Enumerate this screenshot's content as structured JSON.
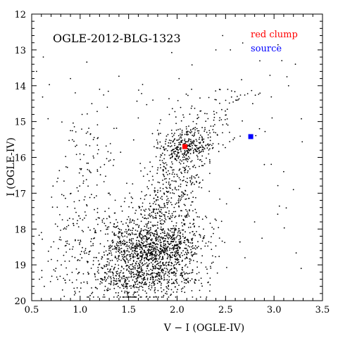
{
  "chart_data": {
    "type": "scatter",
    "title": "OGLE-2012-BLG-1323",
    "xlabel": "V − I (OGLE-IV)",
    "ylabel": "I (OGLE-IV)",
    "xlim": [
      0.5,
      3.5
    ],
    "ylim": [
      20,
      12
    ],
    "y_inverted": true,
    "x_ticks": [
      "0.5",
      "1.0",
      "1.5",
      "2.0",
      "2.5",
      "3.0",
      "3.5"
    ],
    "y_ticks": [
      "12",
      "13",
      "14",
      "15",
      "16",
      "17",
      "18",
      "19",
      "20"
    ],
    "series": [
      {
        "name": "",
        "color": "#000000",
        "marker": "dot",
        "description_of_distribution": "field stars: main-sequence/turnoff cloud near V-I≈1.7, I≈18.7; red giant branch rising to red clump near V-I≈2.1, I≈15.7",
        "points": [
          [
            0.55,
            13.6
          ],
          [
            0.62,
            13.2
          ],
          [
            0.72,
            16.8
          ],
          [
            0.58,
            19.4
          ],
          [
            0.63,
            19.6
          ],
          [
            0.67,
            18.9
          ],
          [
            0.75,
            19.1
          ],
          [
            0.79,
            17.6
          ],
          [
            0.83,
            18.0
          ],
          [
            0.85,
            19.5
          ],
          [
            0.9,
            13.8
          ],
          [
            0.95,
            14.2
          ],
          [
            1.02,
            14.8
          ],
          [
            1.12,
            14.5
          ],
          [
            1.2,
            14.1
          ],
          [
            1.28,
            14.6
          ],
          [
            1.6,
            14.9
          ],
          [
            1.75,
            14.4
          ],
          [
            1.92,
            14.8
          ],
          [
            2.02,
            13.8
          ],
          [
            2.15,
            14.1
          ],
          [
            2.4,
            13.0
          ],
          [
            2.47,
            12.6
          ],
          [
            2.55,
            13.0
          ],
          [
            2.62,
            14.3
          ],
          [
            2.78,
            14.5
          ],
          [
            2.98,
            14.9
          ],
          [
            3.08,
            13.3
          ],
          [
            3.15,
            14.0
          ],
          [
            3.22,
            13.4
          ],
          [
            2.85,
            15.2
          ],
          [
            2.9,
            16.2
          ],
          [
            2.8,
            17.8
          ],
          [
            3.1,
            16.4
          ],
          [
            3.2,
            16.9
          ],
          [
            2.7,
            18.8
          ],
          [
            3.28,
            19.1
          ],
          [
            0.6,
            18.1
          ],
          [
            0.7,
            18.5
          ],
          [
            0.88,
            17.9
          ],
          [
            0.95,
            18.3
          ],
          [
            1.05,
            17.1
          ],
          [
            1.1,
            16.4
          ],
          [
            1.18,
            15.9
          ],
          [
            1.25,
            16.2
          ],
          [
            1.3,
            17.0
          ]
        ]
      }
    ],
    "markers": [
      {
        "name": "red clump",
        "x": 2.08,
        "y": 15.7,
        "color": "#ff0000",
        "shape": "square"
      },
      {
        "name": "source",
        "x": 2.76,
        "y": 15.42,
        "color": "#0000ff",
        "shape": "square"
      }
    ],
    "legend": {
      "placement": "top-right",
      "entries": [
        "red clump",
        "source"
      ]
    }
  }
}
